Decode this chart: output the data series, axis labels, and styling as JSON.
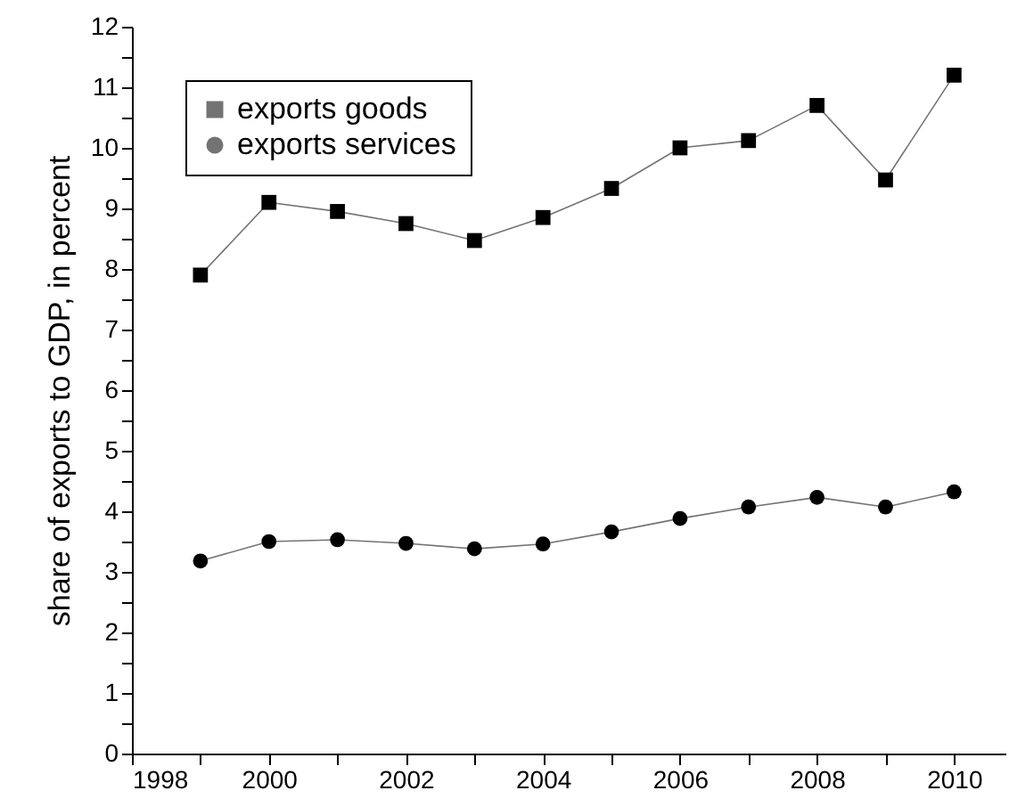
{
  "chart_data": {
    "type": "line",
    "ylabel": "share of exports to GDP, in percent",
    "x": [
      1999,
      2000,
      2001,
      2002,
      2003,
      2004,
      2005,
      2006,
      2007,
      2008,
      2009,
      2010
    ],
    "series": [
      {
        "name": "exports goods",
        "color": "#000000",
        "marker": "square",
        "values": [
          7.9,
          9.1,
          8.95,
          8.75,
          8.47,
          8.85,
          9.33,
          10.0,
          10.12,
          10.7,
          9.47,
          11.2
        ]
      },
      {
        "name": "exports services",
        "color": "#000000",
        "marker": "circle",
        "values": [
          3.18,
          3.5,
          3.53,
          3.47,
          3.38,
          3.46,
          3.66,
          3.88,
          4.07,
          4.23,
          4.07,
          4.32
        ]
      }
    ],
    "xlim": [
      1998,
      2010.75
    ],
    "xticks": [
      1998,
      {
        "value": 1999,
        "label": null
      },
      2000,
      {
        "value": 2001,
        "label": null
      },
      2002,
      {
        "value": 2003,
        "label": null
      },
      2004,
      {
        "value": 2005,
        "label": null
      },
      2006,
      {
        "value": 2007,
        "label": null
      },
      2008,
      {
        "value": 2009,
        "label": null
      },
      2010
    ],
    "ylim": [
      0,
      12
    ],
    "yticks": [
      0,
      {
        "value": 0.5,
        "label": null
      },
      1,
      {
        "value": 1.5,
        "label": null
      },
      2,
      {
        "value": 2.5,
        "label": null
      },
      3,
      {
        "value": 3.5,
        "label": null
      },
      4,
      {
        "value": 4.5,
        "label": null
      },
      5,
      {
        "value": 5.5,
        "label": null
      },
      6,
      {
        "value": 6.5,
        "label": null
      },
      7,
      {
        "value": 7.5,
        "label": null
      },
      8,
      {
        "value": 8.5,
        "label": null
      },
      9,
      {
        "value": 9.5,
        "label": null
      },
      10,
      {
        "value": 10.5,
        "label": null
      },
      11,
      {
        "value": 11.5,
        "label": null
      },
      12
    ],
    "grid": false,
    "legend": "top left",
    "line_style": "solid"
  }
}
